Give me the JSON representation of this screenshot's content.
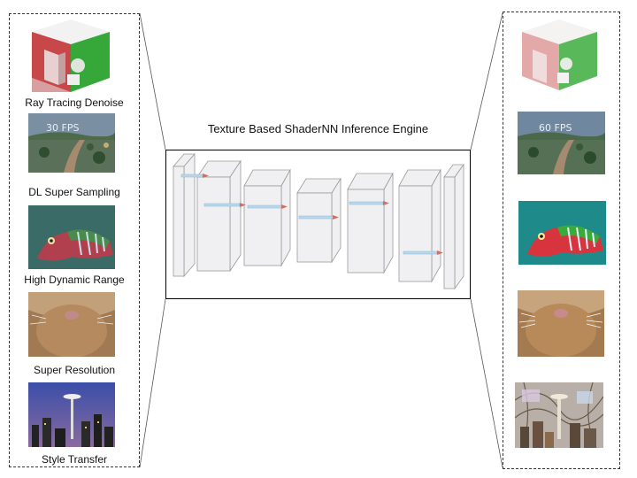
{
  "engine": {
    "title": "Texture Based ShaderNN Inference Engine"
  },
  "tasks": [
    {
      "label": "Ray Tracing Denoise"
    },
    {
      "label": "DL Super Sampling",
      "input_fps": "30 FPS",
      "output_fps": "60 FPS"
    },
    {
      "label": "High Dynamic Range"
    },
    {
      "label": "Super Resolution"
    },
    {
      "label": "Style Transfer"
    }
  ],
  "colors": {
    "panel_border": "#333333",
    "layer_fill": "#f0f0f2",
    "arrow": "#9cc3e0"
  }
}
